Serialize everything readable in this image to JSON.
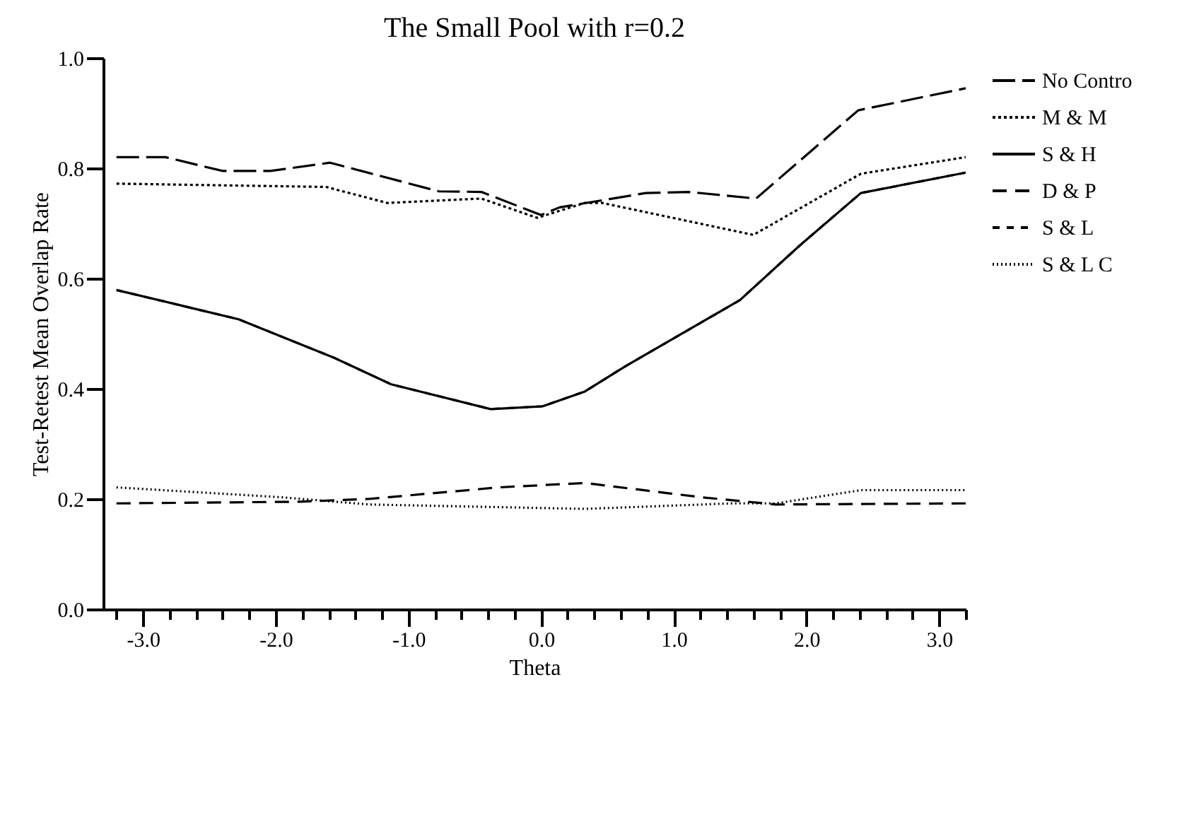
{
  "chart_data": {
    "type": "line",
    "title": "The Small Pool with r=0.2",
    "xlabel": "Theta",
    "ylabel": "Test-Retest Mean Overlap Rate",
    "xlim": [
      -3.3,
      3.2
    ],
    "ylim": [
      0,
      1
    ],
    "xticks": [
      {
        "value": -3.2,
        "label": null
      },
      {
        "value": -3,
        "label": "-3.0"
      },
      {
        "value": -2.8,
        "label": null
      },
      {
        "value": -2.6,
        "label": null
      },
      {
        "value": -2.4,
        "label": null
      },
      {
        "value": -2.2,
        "label": null
      },
      {
        "value": -2,
        "label": "-2.0"
      },
      {
        "value": -1.8,
        "label": null
      },
      {
        "value": -1.6,
        "label": null
      },
      {
        "value": -1.4,
        "label": null
      },
      {
        "value": -1.2,
        "label": null
      },
      {
        "value": -1,
        "label": "-1.0"
      },
      {
        "value": -0.8,
        "label": null
      },
      {
        "value": -0.6,
        "label": null
      },
      {
        "value": -0.4,
        "label": null
      },
      {
        "value": -0.2,
        "label": null
      },
      {
        "value": 0,
        "label": "0.0"
      },
      {
        "value": 0.2,
        "label": null
      },
      {
        "value": 0.4,
        "label": null
      },
      {
        "value": 0.6,
        "label": null
      },
      {
        "value": 0.8,
        "label": null
      },
      {
        "value": 1,
        "label": "1.0"
      },
      {
        "value": 1.2,
        "label": null
      },
      {
        "value": 1.4,
        "label": null
      },
      {
        "value": 1.6,
        "label": null
      },
      {
        "value": 1.8,
        "label": null
      },
      {
        "value": 2,
        "label": "2.0"
      },
      {
        "value": 2.2,
        "label": null
      },
      {
        "value": 2.4,
        "label": null
      },
      {
        "value": 2.6,
        "label": null
      },
      {
        "value": 2.8,
        "label": null
      },
      {
        "value": 3,
        "label": "3.0"
      },
      {
        "value": 3.2,
        "label": null
      }
    ],
    "yticks": [
      {
        "value": 0,
        "label": "0.0"
      },
      {
        "value": 0.2,
        "label": "0.2"
      },
      {
        "value": 0.4,
        "label": "0.4"
      },
      {
        "value": 0.6,
        "label": "0.6"
      },
      {
        "value": 0.8,
        "label": "0.8"
      },
      {
        "value": 1,
        "label": "1.0"
      }
    ],
    "grid": false,
    "legend": "right",
    "series": [
      {
        "name": "No Contro",
        "color": "#000000",
        "line_style": "dashed",
        "x": [
          -3.2,
          -2.83,
          -2.4,
          -2.04,
          -1.59,
          -0.77,
          -0.45,
          0,
          0.14,
          0.79,
          1.11,
          1.62,
          2.39,
          3.2
        ],
        "values": [
          0.82,
          0.82,
          0.795,
          0.795,
          0.81,
          0.758,
          0.757,
          0.715,
          0.729,
          0.755,
          0.757,
          0.745,
          0.905,
          0.945
        ]
      },
      {
        "name": "M & M",
        "color": "#000000",
        "line_style": "dotted",
        "x": [
          -3.2,
          -1.62,
          -1.16,
          -0.45,
          -0.03,
          0.33,
          0.46,
          1.6,
          2.41,
          3.2
        ],
        "values": [
          0.772,
          0.766,
          0.737,
          0.745,
          0.71,
          0.737,
          0.737,
          0.679,
          0.79,
          0.82
        ]
      },
      {
        "name": "S & H",
        "color": "#000000",
        "line_style": "solid",
        "x": [
          -3.2,
          -2.28,
          -1.55,
          -1.13,
          -0.38,
          0.01,
          0.33,
          0.63,
          1.5,
          1.95,
          2.41,
          3.2
        ],
        "values": [
          0.579,
          0.526,
          0.455,
          0.408,
          0.363,
          0.368,
          0.395,
          0.44,
          0.561,
          0.66,
          0.755,
          0.792
        ]
      },
      {
        "name": "D & P",
        "color": "#000000",
        "line_style": "dashed",
        "x": [
          -3.2,
          -1.82,
          -1.3,
          -0.32,
          0.33,
          1.21,
          1.77,
          3.2
        ],
        "values": [
          0.192,
          0.195,
          0.2,
          0.221,
          0.229,
          0.203,
          0.19,
          0.192
        ]
      },
      {
        "name": "S & L",
        "color": "#000000",
        "line_style": "dashed",
        "x": [
          -3.2,
          -2.28,
          -1.55,
          -1.13,
          -0.38,
          0.01,
          0.33,
          0.63,
          1.5,
          1.95,
          2.41,
          3.2
        ],
        "values": [
          0.579,
          0.526,
          0.455,
          0.408,
          0.363,
          0.368,
          0.395,
          0.44,
          0.561,
          0.66,
          0.755,
          0.792
        ]
      },
      {
        "name": "S & L C",
        "color": "#000000",
        "line_style": "dotted",
        "x": [
          -3.2,
          -1.95,
          -1.3,
          0.33,
          1.44,
          1.77,
          2.41,
          3.2
        ],
        "values": [
          0.221,
          0.203,
          0.19,
          0.182,
          0.192,
          0.192,
          0.216,
          0.216
        ]
      }
    ]
  }
}
